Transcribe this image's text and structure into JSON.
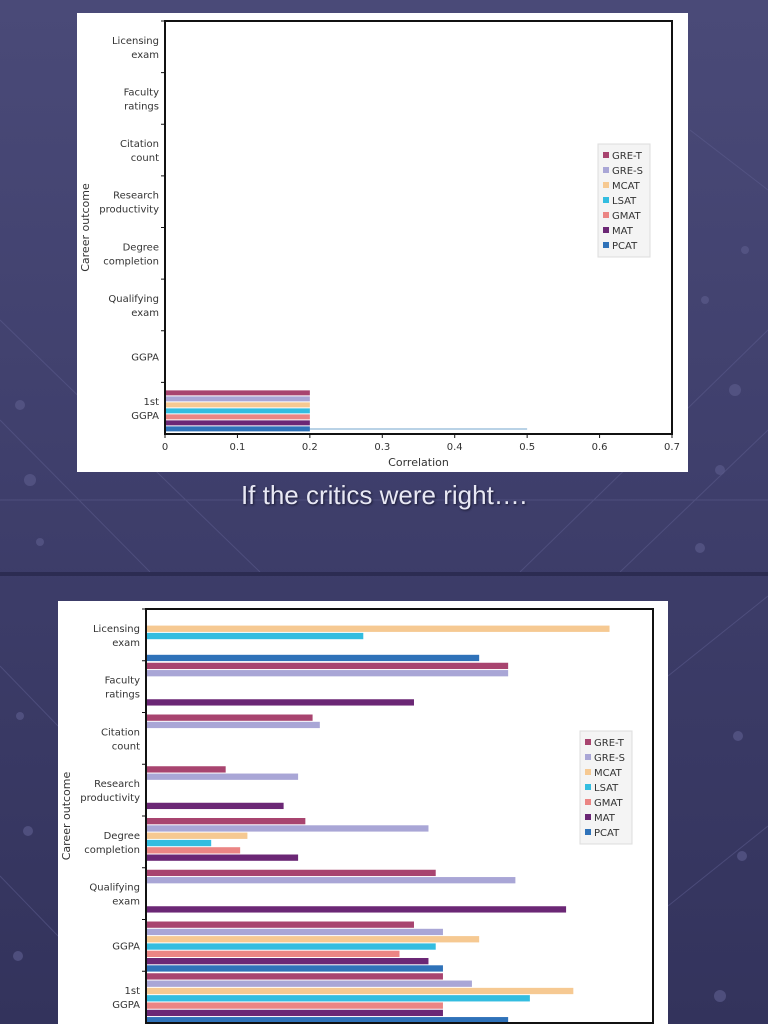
{
  "slides": [
    {
      "caption": "If the critics were right….",
      "chart_data": {
        "type": "bar",
        "orientation": "horizontal",
        "categories": [
          "Licensing exam",
          "Faculty ratings",
          "Citation count",
          "Research productivity",
          "Degree completion",
          "Qualifying exam",
          "GGPA",
          "1st GGPA"
        ],
        "series": [
          {
            "name": "GRE-T",
            "color": "#a8446f",
            "values": [
              null,
              null,
              null,
              null,
              null,
              null,
              null,
              0.2
            ]
          },
          {
            "name": "GRE-S",
            "color": "#a9a6d6",
            "values": [
              null,
              null,
              null,
              null,
              null,
              null,
              null,
              0.2
            ]
          },
          {
            "name": "MCAT",
            "color": "#f6c992",
            "values": [
              null,
              null,
              null,
              null,
              null,
              null,
              null,
              0.2
            ]
          },
          {
            "name": "LSAT",
            "color": "#33bde0",
            "values": [
              null,
              null,
              null,
              null,
              null,
              null,
              null,
              0.2
            ]
          },
          {
            "name": "GMAT",
            "color": "#eb8584",
            "values": [
              null,
              null,
              null,
              null,
              null,
              null,
              null,
              0.2
            ]
          },
          {
            "name": "MAT",
            "color": "#6b2775",
            "values": [
              null,
              null,
              null,
              null,
              null,
              null,
              null,
              0.2
            ]
          },
          {
            "name": "PCAT",
            "color": "#2f72b9",
            "values": [
              null,
              null,
              null,
              null,
              null,
              null,
              null,
              0.2
            ]
          }
        ],
        "xlabel": "Correlation",
        "ylabel": "Career outcome",
        "xlim": [
          0,
          0.7
        ],
        "xticks": [
          "0",
          "0.1",
          "0.2",
          "0.3",
          "0.4",
          "0.5",
          "0.6",
          "0.7"
        ],
        "reference_line": 0.5,
        "legend": "right"
      }
    },
    {
      "chart_data": {
        "type": "bar",
        "orientation": "horizontal",
        "categories": [
          "Licensing exam",
          "Faculty ratings",
          "Citation count",
          "Research productivity",
          "Degree completion",
          "Qualifying exam",
          "GGPA",
          "1st GGPA"
        ],
        "series": [
          {
            "name": "GRE-T",
            "color": "#a8446f",
            "values": [
              null,
              0.5,
              0.23,
              0.11,
              0.22,
              0.4,
              0.37,
              0.41
            ]
          },
          {
            "name": "GRE-S",
            "color": "#a9a6d6",
            "values": [
              null,
              0.5,
              0.24,
              0.21,
              0.39,
              0.51,
              0.41,
              0.45
            ]
          },
          {
            "name": "MCAT",
            "color": "#f6c992",
            "values": [
              0.64,
              null,
              null,
              null,
              0.14,
              null,
              0.46,
              0.59
            ]
          },
          {
            "name": "LSAT",
            "color": "#33bde0",
            "values": [
              0.3,
              null,
              null,
              null,
              0.09,
              null,
              0.4,
              0.53
            ]
          },
          {
            "name": "GMAT",
            "color": "#eb8584",
            "values": [
              null,
              null,
              null,
              null,
              0.13,
              null,
              0.35,
              0.41
            ]
          },
          {
            "name": "MAT",
            "color": "#6b2775",
            "values": [
              null,
              0.37,
              null,
              0.19,
              0.21,
              0.58,
              0.39,
              0.41
            ]
          },
          {
            "name": "PCAT",
            "color": "#2f72b9",
            "values": [
              0.46,
              null,
              null,
              null,
              null,
              null,
              0.41,
              0.5
            ]
          }
        ],
        "ylabel": "Career outcome",
        "xlim": [
          0,
          0.7
        ],
        "legend": "right"
      }
    }
  ]
}
